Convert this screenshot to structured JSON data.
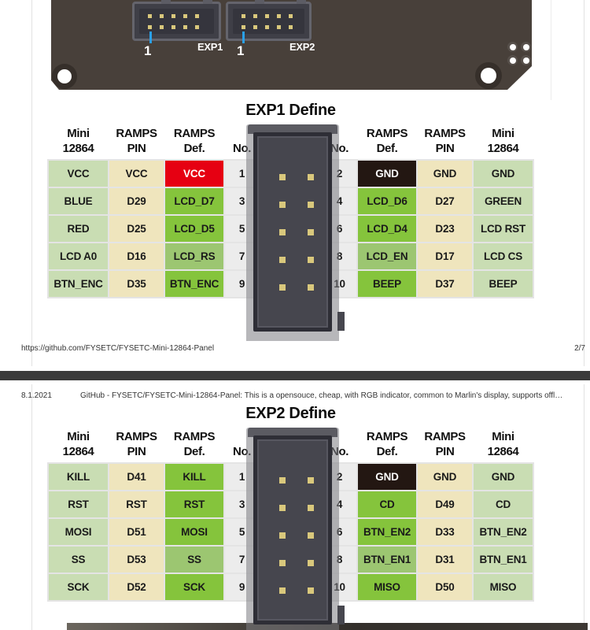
{
  "colors": {
    "accent_red": "#e60012",
    "gnd_dark": "#231712",
    "green_bright": "#85c43c",
    "green_muted": "#9cc671",
    "tan": "#efe5bd",
    "light_green": "#c9ddb3",
    "no_gray": "#ececec",
    "pcb_dark": "#48403a",
    "pin_gold": "#d9c87c",
    "marker_blue": "#2aa0e8",
    "separator_gray": "#3b3b3b"
  },
  "pcb": {
    "connector1_label": "EXP1",
    "connector2_label": "EXP2",
    "pin1_marker_1": "1",
    "pin1_marker_2": "1"
  },
  "page2": {
    "footer_url": "https://github.com/FYSETC/FYSETC-Mini-12864-Panel",
    "footer_page": "2/7"
  },
  "page3": {
    "header_date": "8.1.2021",
    "header_title": "GitHub - FYSETC/FYSETC-Mini-12864-Panel: This is a opensouce, cheap, with RGB indicator, common to Marlin's display, supports offlin…"
  },
  "exp1": {
    "title": "EXP1 Define",
    "headers": [
      "Mini\n12864",
      "RAMPS\nPIN",
      "RAMPS\nDef.",
      "No.",
      "",
      "No.",
      "RAMPS\nDef.",
      "RAMPS\nPIN",
      "Mini\n12864"
    ],
    "rows": [
      [
        {
          "t": "VCC",
          "c": "mini"
        },
        {
          "t": "VCC",
          "c": "pin"
        },
        {
          "t": "VCC",
          "c": "red"
        },
        {
          "t": "1",
          "c": "no"
        },
        {
          "t": "",
          "c": "sp"
        },
        {
          "t": "2",
          "c": "no"
        },
        {
          "t": "GND",
          "c": "dark"
        },
        {
          "t": "GND",
          "c": "pin"
        },
        {
          "t": "GND",
          "c": "mini"
        }
      ],
      [
        {
          "t": "BLUE",
          "c": "mini"
        },
        {
          "t": "D29",
          "c": "pin"
        },
        {
          "t": "LCD_D7",
          "c": "green"
        },
        {
          "t": "3",
          "c": "no"
        },
        {
          "t": "",
          "c": "sp"
        },
        {
          "t": "4",
          "c": "no"
        },
        {
          "t": "LCD_D6",
          "c": "green"
        },
        {
          "t": "D27",
          "c": "pin"
        },
        {
          "t": "GREEN",
          "c": "mini"
        }
      ],
      [
        {
          "t": "RED",
          "c": "mini"
        },
        {
          "t": "D25",
          "c": "pin"
        },
        {
          "t": "LCD_D5",
          "c": "green"
        },
        {
          "t": "5",
          "c": "no"
        },
        {
          "t": "",
          "c": "sp"
        },
        {
          "t": "6",
          "c": "no"
        },
        {
          "t": "LCD_D4",
          "c": "green"
        },
        {
          "t": "D23",
          "c": "pin"
        },
        {
          "t": "LCD RST",
          "c": "mini"
        }
      ],
      [
        {
          "t": "LCD A0",
          "c": "mini"
        },
        {
          "t": "D16",
          "c": "pin"
        },
        {
          "t": "LCD_RS",
          "c": "mgreen"
        },
        {
          "t": "7",
          "c": "no"
        },
        {
          "t": "",
          "c": "sp"
        },
        {
          "t": "8",
          "c": "no"
        },
        {
          "t": "LCD_EN",
          "c": "mgreen"
        },
        {
          "t": "D17",
          "c": "pin"
        },
        {
          "t": "LCD CS",
          "c": "mini"
        }
      ],
      [
        {
          "t": "BTN_ENC",
          "c": "mini"
        },
        {
          "t": "D35",
          "c": "pin"
        },
        {
          "t": "BTN_ENC",
          "c": "green"
        },
        {
          "t": "9",
          "c": "no"
        },
        {
          "t": "",
          "c": "sp"
        },
        {
          "t": "10",
          "c": "no"
        },
        {
          "t": "BEEP",
          "c": "green"
        },
        {
          "t": "D37",
          "c": "pin"
        },
        {
          "t": "BEEP",
          "c": "mini"
        }
      ]
    ]
  },
  "exp2": {
    "title": "EXP2 Define",
    "headers": [
      "Mini\n12864",
      "RAMPS\nPIN",
      "RAMPS\nDef.",
      "No.",
      "",
      "No.",
      "RAMPS\nDef.",
      "RAMPS\nPIN",
      "Mini\n12864"
    ],
    "rows": [
      [
        {
          "t": "KILL",
          "c": "mini"
        },
        {
          "t": "D41",
          "c": "pin"
        },
        {
          "t": "KILL",
          "c": "green"
        },
        {
          "t": "1",
          "c": "no"
        },
        {
          "t": "",
          "c": "sp"
        },
        {
          "t": "2",
          "c": "no"
        },
        {
          "t": "GND",
          "c": "dark"
        },
        {
          "t": "GND",
          "c": "pin"
        },
        {
          "t": "GND",
          "c": "mini"
        }
      ],
      [
        {
          "t": "RST",
          "c": "mini"
        },
        {
          "t": "RST",
          "c": "pin"
        },
        {
          "t": "RST",
          "c": "green"
        },
        {
          "t": "3",
          "c": "no"
        },
        {
          "t": "",
          "c": "sp"
        },
        {
          "t": "4",
          "c": "no"
        },
        {
          "t": "CD",
          "c": "green"
        },
        {
          "t": "D49",
          "c": "pin"
        },
        {
          "t": "CD",
          "c": "mini"
        }
      ],
      [
        {
          "t": "MOSI",
          "c": "mini"
        },
        {
          "t": "D51",
          "c": "pin"
        },
        {
          "t": "MOSI",
          "c": "green"
        },
        {
          "t": "5",
          "c": "no"
        },
        {
          "t": "",
          "c": "sp"
        },
        {
          "t": "6",
          "c": "no"
        },
        {
          "t": "BTN_EN2",
          "c": "green"
        },
        {
          "t": "D33",
          "c": "pin"
        },
        {
          "t": "BTN_EN2",
          "c": "mini"
        }
      ],
      [
        {
          "t": "SS",
          "c": "mini"
        },
        {
          "t": "D53",
          "c": "pin"
        },
        {
          "t": "SS",
          "c": "mgreen"
        },
        {
          "t": "7",
          "c": "no"
        },
        {
          "t": "",
          "c": "sp"
        },
        {
          "t": "8",
          "c": "no"
        },
        {
          "t": "BTN_EN1",
          "c": "mgreen"
        },
        {
          "t": "D31",
          "c": "pin"
        },
        {
          "t": "BTN_EN1",
          "c": "mini"
        }
      ],
      [
        {
          "t": "SCK",
          "c": "mini"
        },
        {
          "t": "D52",
          "c": "pin"
        },
        {
          "t": "SCK",
          "c": "green"
        },
        {
          "t": "9",
          "c": "no"
        },
        {
          "t": "",
          "c": "sp"
        },
        {
          "t": "10",
          "c": "no"
        },
        {
          "t": "MISO",
          "c": "green"
        },
        {
          "t": "D50",
          "c": "pin"
        },
        {
          "t": "MISO",
          "c": "mini"
        }
      ]
    ]
  }
}
